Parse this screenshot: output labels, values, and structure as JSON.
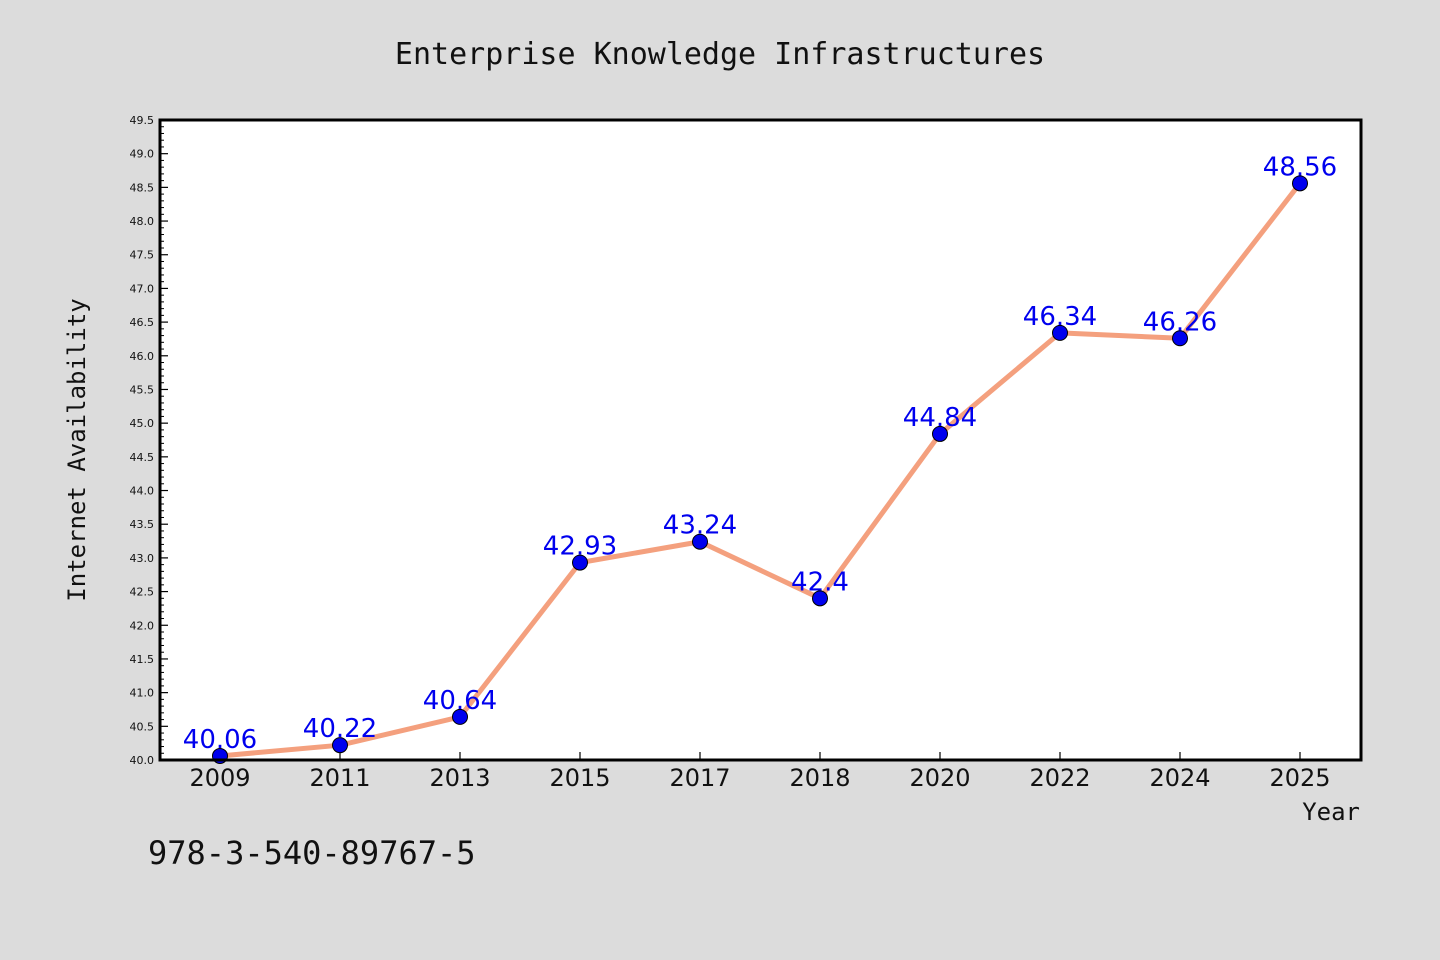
{
  "chart_data": {
    "type": "line",
    "title": "Enterprise Knowledge Infrastructures",
    "xlabel": "Year",
    "ylabel": "Internet Availability",
    "categories": [
      "2009",
      "2011",
      "2013",
      "2015",
      "2017",
      "2018",
      "2020",
      "2022",
      "2024",
      "2025"
    ],
    "series": [
      {
        "values": [
          40.06,
          40.22,
          40.64,
          42.93,
          43.24,
          42.4,
          44.84,
          46.34,
          46.26,
          48.56
        ],
        "labels": [
          "40.06",
          "40.22",
          "40.64",
          "42.93",
          "43.24",
          "42.4",
          "44.84",
          "46.34",
          "46.26",
          "48.56"
        ],
        "line_color": "#f4a07e",
        "marker_color": "#0000ee",
        "label_color": "#0000ee"
      }
    ],
    "ylim": [
      40.0,
      49.5
    ],
    "y_ticks": [
      "40.0",
      "40.5",
      "41.0",
      "41.5",
      "42.0",
      "42.5",
      "43.0",
      "43.5",
      "44.0",
      "44.5",
      "45.0",
      "45.5",
      "46.0",
      "46.5",
      "47.0",
      "47.5",
      "48.0",
      "48.5",
      "49.0",
      "49.5"
    ],
    "grid": false,
    "legend": "none"
  },
  "footer_text": "978-3-540-89767-5",
  "colors": {
    "background": "#dcdcdc",
    "plot_background": "#ffffff",
    "axis": "#000000",
    "text": "#111111"
  }
}
